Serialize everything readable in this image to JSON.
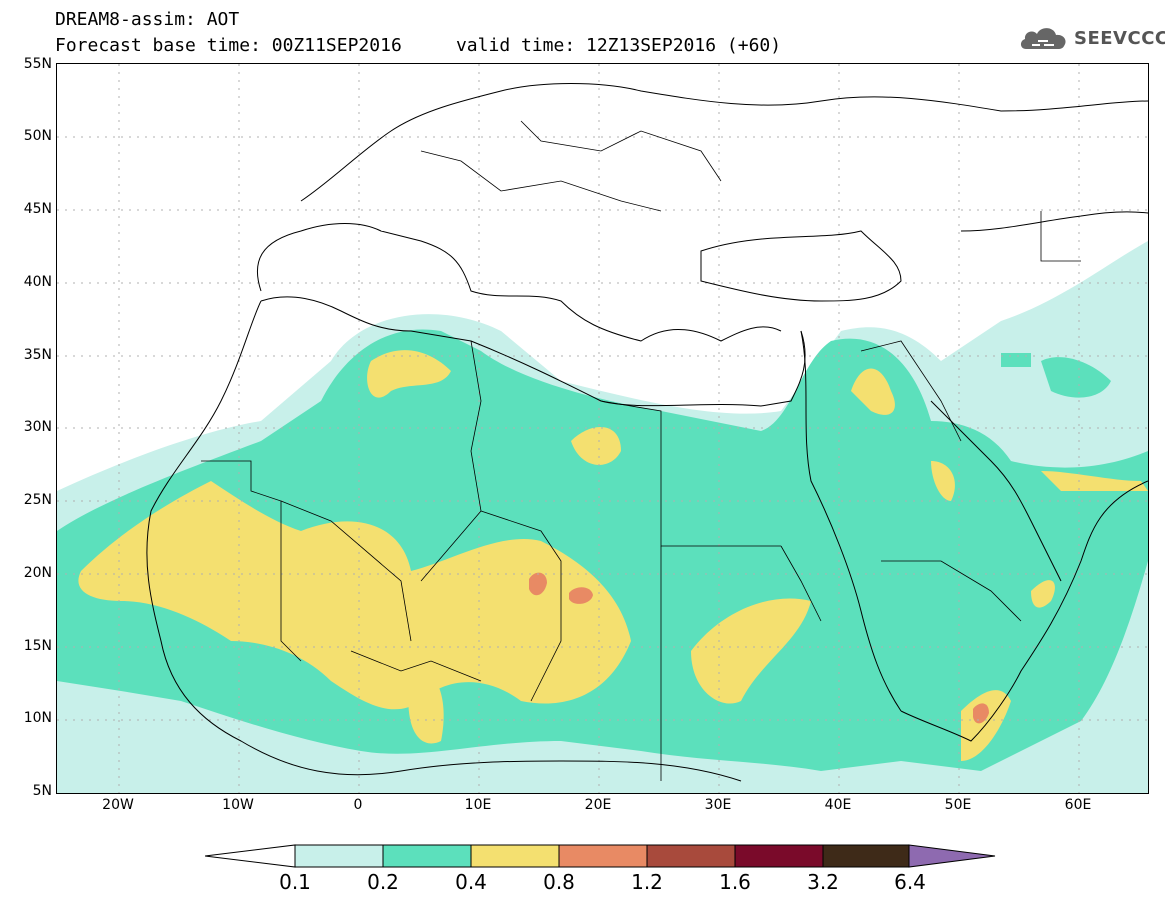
{
  "header": {
    "title_line1": "DREAM8-assim: AOT",
    "title_line2": "Forecast base time: 00Z11SEP2016     valid time: 12Z13SEP2016 (+60)"
  },
  "logo": {
    "text": "SEEVCCC",
    "icon": "cloud-icon"
  },
  "map": {
    "lat_labels": [
      "55N",
      "50N",
      "45N",
      "40N",
      "35N",
      "30N",
      "25N",
      "20N",
      "15N",
      "10N",
      "5N"
    ],
    "lon_labels": [
      "20W",
      "10W",
      "0",
      "10E",
      "20E",
      "30E",
      "40E",
      "50E",
      "60E"
    ]
  },
  "colorbar": {
    "labels": [
      "0.1",
      "0.2",
      "0.4",
      "0.8",
      "1.2",
      "1.6",
      "3.2",
      "6.4"
    ],
    "colors": [
      "#c8f0ea",
      "#5ce0bc",
      "#f4e070",
      "#e88a64",
      "#a84a3c",
      "#7a0a2a",
      "#3e2a18",
      "#8e6ab0"
    ]
  }
}
